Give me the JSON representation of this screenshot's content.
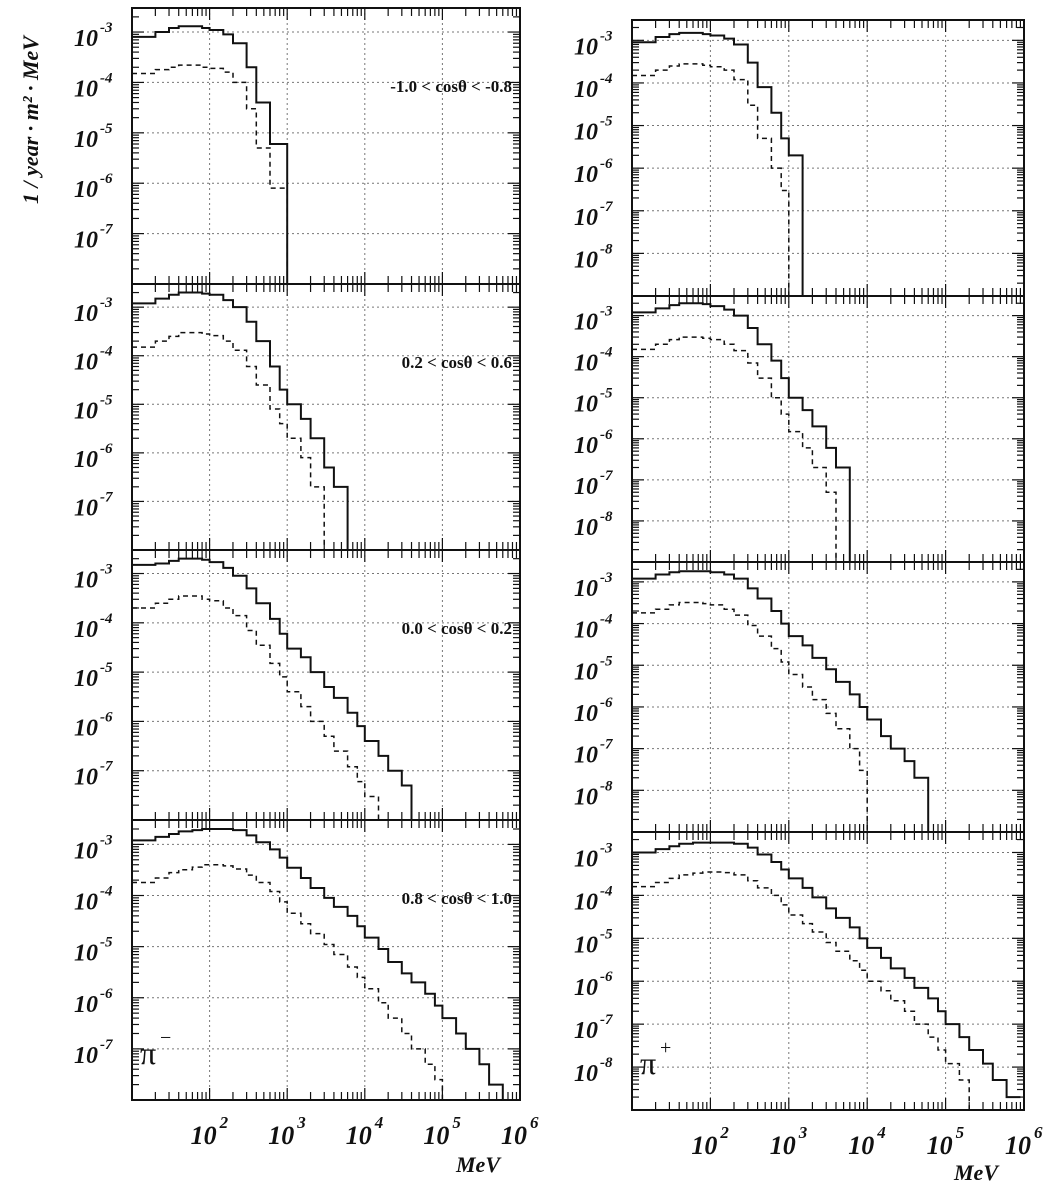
{
  "ylabel": "1 / year · m² · MeV",
  "xlabel": "MeV",
  "x_tick_exponents": [
    "2",
    "3",
    "4",
    "5",
    "6"
  ],
  "x_tick_base": "10",
  "colors": {
    "ink": "#111111",
    "grid": "#777777",
    "background": "#ffffff"
  },
  "columns": [
    {
      "particle": "π",
      "particle_charge": "−",
      "panels": [
        {
          "range_label": "-1.0 < cosθ < -0.8",
          "y_exponents": [
            "-3",
            "-4",
            "-5",
            "-6",
            "-7"
          ]
        },
        {
          "range_label": "0.2 < cosθ < 0.6",
          "y_exponents": [
            "-3",
            "-4",
            "-5",
            "-6",
            "-7"
          ]
        },
        {
          "range_label": "0.0 < cosθ < 0.2",
          "y_exponents": [
            "-3",
            "-4",
            "-5",
            "-6",
            "-7"
          ]
        },
        {
          "range_label": "0.8 < cosθ < 1.0",
          "y_exponents": [
            "-3",
            "-4",
            "-5",
            "-6",
            "-7"
          ]
        }
      ]
    },
    {
      "particle": "π",
      "particle_charge": "+",
      "panels": [
        {
          "range_label": "",
          "y_exponents": [
            "-3",
            "-4",
            "-5",
            "-6",
            "-7",
            "-8"
          ]
        },
        {
          "range_label": "",
          "y_exponents": [
            "-3",
            "-4",
            "-5",
            "-6",
            "-7",
            "-8"
          ]
        },
        {
          "range_label": "",
          "y_exponents": [
            "-3",
            "-4",
            "-5",
            "-6",
            "-7",
            "-8"
          ]
        },
        {
          "range_label": "",
          "y_exponents": [
            "-3",
            "-4",
            "-5",
            "-6",
            "-7",
            "-8"
          ]
        }
      ]
    }
  ],
  "chart_data": [
    {
      "type": "line",
      "step": true,
      "log_x": true,
      "log_y": true,
      "particle": "π−",
      "range_label": "-1.0 < cosθ < -0.8",
      "xlim": [
        10,
        1000000
      ],
      "ylim": [
        1e-08,
        0.003
      ],
      "x": [
        15,
        20,
        30,
        40,
        60,
        80,
        100,
        150,
        200,
        300,
        400,
        600,
        800,
        1000
      ],
      "series": [
        {
          "style": "solid",
          "values": [
            0.0008,
            0.001,
            0.0012,
            0.0013,
            0.0013,
            0.0012,
            0.0011,
            0.0009,
            0.0006,
            0.0002,
            4e-05,
            6e-06,
            6e-06,
            0
          ]
        },
        {
          "style": "dashed",
          "values": [
            0.00015,
            0.00018,
            0.0002,
            0.00022,
            0.00022,
            0.0002,
            0.00019,
            0.00016,
            0.0001,
            3e-05,
            5e-06,
            8e-07,
            8e-07,
            0
          ]
        }
      ]
    },
    {
      "type": "line",
      "step": true,
      "log_x": true,
      "log_y": true,
      "particle": "π−",
      "range_label": "0.2 < cosθ < 0.6",
      "xlim": [
        10,
        1000000
      ],
      "ylim": [
        1e-08,
        0.003
      ],
      "x": [
        15,
        20,
        30,
        40,
        60,
        80,
        100,
        150,
        200,
        300,
        400,
        600,
        800,
        1000,
        1500,
        2000,
        3000,
        4000,
        6000
      ],
      "series": [
        {
          "style": "solid",
          "values": [
            0.0012,
            0.0015,
            0.0018,
            0.002,
            0.002,
            0.0019,
            0.0018,
            0.0014,
            0.001,
            0.0005,
            0.0002,
            6e-05,
            2e-05,
            1e-05,
            5e-06,
            2e-06,
            5e-07,
            2e-07,
            0
          ]
        },
        {
          "style": "dashed",
          "values": [
            0.00015,
            0.0002,
            0.00025,
            0.0003,
            0.0003,
            0.00028,
            0.00026,
            0.0002,
            0.00013,
            6e-05,
            2.5e-05,
            8e-06,
            4e-06,
            2e-06,
            8e-07,
            2e-07,
            0,
            0,
            0
          ]
        }
      ]
    },
    {
      "type": "line",
      "step": true,
      "log_x": true,
      "log_y": true,
      "particle": "π−",
      "range_label": "0.0 < cosθ < 0.2",
      "xlim": [
        10,
        1000000
      ],
      "ylim": [
        1e-08,
        0.003
      ],
      "x": [
        15,
        20,
        30,
        40,
        60,
        80,
        100,
        150,
        200,
        300,
        400,
        600,
        800,
        1000,
        1500,
        2000,
        3000,
        4000,
        6000,
        8000,
        10000,
        15000,
        20000,
        30000,
        40000
      ],
      "series": [
        {
          "style": "solid",
          "values": [
            0.0015,
            0.0016,
            0.0018,
            0.002,
            0.002,
            0.0019,
            0.0017,
            0.0013,
            0.0009,
            0.0005,
            0.00025,
            0.00012,
            6e-05,
            3e-05,
            2e-05,
            1e-05,
            5e-06,
            3e-06,
            1.5e-06,
            8e-07,
            4e-07,
            2e-07,
            1e-07,
            5e-08,
            0
          ]
        },
        {
          "style": "dashed",
          "values": [
            0.0002,
            0.00025,
            0.0003,
            0.00035,
            0.00035,
            0.0003,
            0.00028,
            0.0002,
            0.00014,
            7e-05,
            3.5e-05,
            1.5e-05,
            8e-06,
            4e-06,
            2e-06,
            1e-06,
            5e-07,
            2.5e-07,
            1.2e-07,
            6e-08,
            3e-08,
            1e-08,
            0,
            0,
            0
          ]
        }
      ]
    },
    {
      "type": "line",
      "step": true,
      "log_x": true,
      "log_y": true,
      "particle": "π−",
      "range_label": "0.8 < cosθ < 1.0",
      "xlim": [
        10,
        1000000
      ],
      "ylim": [
        1e-08,
        0.003
      ],
      "x": [
        15,
        20,
        30,
        40,
        60,
        80,
        100,
        150,
        200,
        300,
        400,
        600,
        800,
        1000,
        1500,
        2000,
        3000,
        4000,
        6000,
        8000,
        10000,
        15000,
        20000,
        30000,
        40000,
        60000,
        80000,
        100000,
        150000,
        200000,
        300000,
        400000,
        600000
      ],
      "series": [
        {
          "style": "solid",
          "values": [
            0.0012,
            0.0014,
            0.0016,
            0.0018,
            0.0019,
            0.002,
            0.002,
            0.002,
            0.0019,
            0.0015,
            0.0011,
            0.0008,
            0.00055,
            0.00035,
            0.00022,
            0.00014,
            9e-05,
            6e-05,
            4e-05,
            2.5e-05,
            1.5e-05,
            9e-06,
            5e-06,
            3e-06,
            2e-06,
            1.2e-06,
            7e-07,
            4e-07,
            2e-07,
            1e-07,
            5e-08,
            2e-08,
            1e-08
          ]
        },
        {
          "style": "dashed",
          "values": [
            0.00018,
            0.00022,
            0.00028,
            0.00032,
            0.00036,
            0.0004,
            0.0004,
            0.00038,
            0.00033,
            0.00025,
            0.00018,
            0.00012,
            7.5e-05,
            4.5e-05,
            2.8e-05,
            1.8e-05,
            1.1e-05,
            7e-06,
            4e-06,
            2.5e-06,
            1.5e-06,
            8e-07,
            4e-07,
            2e-07,
            1e-07,
            5e-08,
            2.5e-08,
            1e-08,
            0,
            0,
            0,
            0,
            0
          ]
        }
      ]
    },
    {
      "type": "line",
      "step": true,
      "log_x": true,
      "log_y": true,
      "particle": "π+",
      "range_label": "",
      "xlim": [
        10,
        1000000
      ],
      "ylim": [
        1e-09,
        0.003
      ],
      "x": [
        15,
        20,
        30,
        40,
        60,
        80,
        100,
        150,
        200,
        300,
        400,
        600,
        800,
        1000,
        1500
      ],
      "series": [
        {
          "style": "solid",
          "values": [
            0.0009,
            0.0012,
            0.0014,
            0.0015,
            0.0015,
            0.0014,
            0.0013,
            0.0011,
            0.0008,
            0.0003,
            8e-05,
            2e-05,
            5e-06,
            2e-06,
            0
          ]
        },
        {
          "style": "dashed",
          "values": [
            0.00015,
            0.0002,
            0.00025,
            0.00028,
            0.00028,
            0.00026,
            0.00024,
            0.0002,
            0.00012,
            3e-05,
            5e-06,
            1e-06,
            3e-07,
            0,
            0
          ]
        }
      ]
    },
    {
      "type": "line",
      "step": true,
      "log_x": true,
      "log_y": true,
      "particle": "π+",
      "range_label": "",
      "xlim": [
        10,
        1000000
      ],
      "ylim": [
        1e-09,
        0.003
      ],
      "x": [
        15,
        20,
        30,
        40,
        60,
        80,
        100,
        150,
        200,
        300,
        400,
        600,
        800,
        1000,
        1500,
        2000,
        3000,
        4000,
        6000
      ],
      "series": [
        {
          "style": "solid",
          "values": [
            0.0012,
            0.0015,
            0.0018,
            0.002,
            0.002,
            0.0019,
            0.0017,
            0.0014,
            0.001,
            0.0005,
            0.0002,
            8e-05,
            3e-05,
            1e-05,
            5e-06,
            2e-06,
            6e-07,
            2e-07,
            0
          ]
        },
        {
          "style": "dashed",
          "values": [
            0.00015,
            0.0002,
            0.00026,
            0.0003,
            0.0003,
            0.00028,
            0.00026,
            0.0002,
            0.00014,
            7e-05,
            3e-05,
            1e-05,
            4e-06,
            1.5e-06,
            6e-07,
            2e-07,
            5e-08,
            0,
            0
          ]
        }
      ]
    },
    {
      "type": "line",
      "step": true,
      "log_x": true,
      "log_y": true,
      "particle": "π+",
      "range_label": "",
      "xlim": [
        10,
        1000000
      ],
      "ylim": [
        1e-09,
        0.003
      ],
      "x": [
        15,
        20,
        30,
        40,
        60,
        80,
        100,
        150,
        200,
        300,
        400,
        600,
        800,
        1000,
        1500,
        2000,
        3000,
        4000,
        6000,
        8000,
        10000,
        15000,
        20000,
        30000,
        40000,
        60000
      ],
      "series": [
        {
          "style": "solid",
          "values": [
            0.0012,
            0.0015,
            0.0017,
            0.0018,
            0.0018,
            0.0018,
            0.0017,
            0.0015,
            0.0012,
            0.0007,
            0.0004,
            0.0002,
            0.0001,
            5e-05,
            3e-05,
            1.5e-05,
            8e-06,
            4e-06,
            2e-06,
            1e-06,
            5e-07,
            2e-07,
            1e-07,
            5e-08,
            2e-08,
            0
          ]
        },
        {
          "style": "dashed",
          "values": [
            0.00018,
            0.00022,
            0.00028,
            0.00032,
            0.00032,
            0.0003,
            0.00028,
            0.00022,
            0.00016,
            9e-05,
            5e-05,
            2.5e-05,
            1.2e-05,
            6e-06,
            3e-06,
            1.5e-06,
            7e-07,
            3e-07,
            1e-07,
            3e-08,
            0,
            0,
            0,
            0,
            0,
            0
          ]
        }
      ]
    },
    {
      "type": "line",
      "step": true,
      "log_x": true,
      "log_y": true,
      "particle": "π+",
      "range_label": "",
      "xlim": [
        10,
        1000000
      ],
      "ylim": [
        1e-09,
        0.003
      ],
      "x": [
        15,
        20,
        30,
        40,
        60,
        80,
        100,
        150,
        200,
        300,
        400,
        600,
        800,
        1000,
        1500,
        2000,
        3000,
        4000,
        6000,
        8000,
        10000,
        15000,
        20000,
        30000,
        40000,
        60000,
        80000,
        100000,
        150000,
        200000,
        300000,
        400000,
        600000
      ],
      "series": [
        {
          "style": "solid",
          "values": [
            0.001,
            0.0012,
            0.0014,
            0.0016,
            0.0017,
            0.0017,
            0.0017,
            0.0017,
            0.0016,
            0.0013,
            0.0009,
            0.0006,
            0.0004,
            0.00025,
            0.00015,
            9e-05,
            5e-05,
            3e-05,
            1.8e-05,
            1e-05,
            6e-06,
            3.5e-06,
            2e-06,
            1.2e-06,
            7e-07,
            4e-07,
            2e-07,
            1e-07,
            5e-08,
            2.5e-08,
            1.2e-08,
            5e-09,
            2e-09
          ]
        },
        {
          "style": "dashed",
          "values": [
            0.00016,
            0.0002,
            0.00025,
            0.0003,
            0.00033,
            0.00035,
            0.00035,
            0.00034,
            0.0003,
            0.00022,
            0.00015,
            0.0001,
            6e-05,
            3.5e-05,
            2.2e-05,
            1.4e-05,
            8e-06,
            5e-06,
            3e-06,
            1.8e-06,
            1e-06,
            6e-07,
            3.5e-07,
            2e-07,
            1e-07,
            5e-08,
            2.5e-08,
            1.2e-08,
            5e-09,
            0,
            0,
            0,
            0
          ]
        }
      ]
    }
  ]
}
